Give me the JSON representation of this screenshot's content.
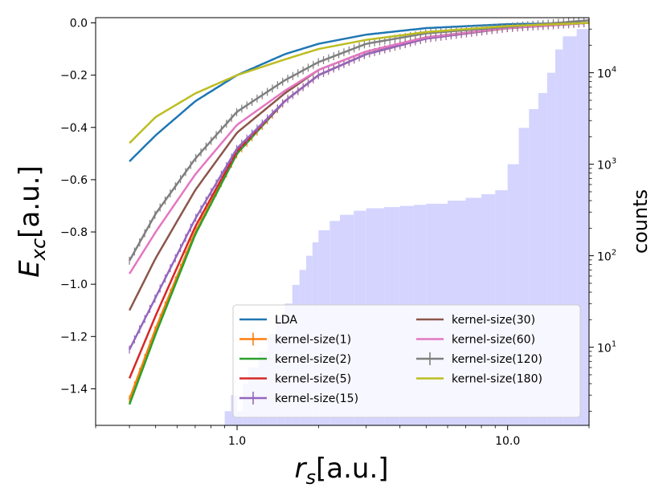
{
  "chart_data": {
    "type": "line",
    "title": "",
    "xlabel_base": "r",
    "xlabel_sub": "s",
    "xlabel_unit": "[a.u.]",
    "ylabel_base": "E",
    "ylabel_sub": "xc",
    "ylabel_unit": "[a.u.]",
    "y2label": "counts",
    "xscale": "log",
    "xlim": [
      0.3,
      20
    ],
    "ylim": [
      -1.54,
      0.02
    ],
    "y2scale": "log",
    "y2lim": [
      1.4,
      40000
    ],
    "xticks": [
      {
        "value": 1.0,
        "label": "1.0"
      },
      {
        "value": 10.0,
        "label": "10.0"
      }
    ],
    "yticks": [
      {
        "value": 0.0,
        "label": "0.0"
      },
      {
        "value": -0.2,
        "label": "−0.2"
      },
      {
        "value": -0.4,
        "label": "−0.4"
      },
      {
        "value": -0.6,
        "label": "−0.6"
      },
      {
        "value": -0.8,
        "label": "−0.8"
      },
      {
        "value": -1.0,
        "label": "−1.0"
      },
      {
        "value": -1.2,
        "label": "−1.2"
      },
      {
        "value": -1.4,
        "label": "−1.4"
      }
    ],
    "y2ticks": [
      {
        "value": 10,
        "base": "10",
        "exp": "1"
      },
      {
        "value": 100,
        "base": "10",
        "exp": "2"
      },
      {
        "value": 1000,
        "base": "10",
        "exp": "3"
      },
      {
        "value": 10000,
        "base": "10",
        "exp": "4"
      }
    ],
    "series": [
      {
        "name": "LDA",
        "color": "#1f77b4",
        "errorbars": false,
        "x": [
          0.4,
          0.5,
          0.7,
          1.0,
          1.5,
          2.0,
          3.0,
          5.0,
          10.0,
          20.0
        ],
        "y": [
          -0.53,
          -0.43,
          -0.3,
          -0.2,
          -0.12,
          -0.08,
          -0.045,
          -0.02,
          -0.005,
          0.0
        ]
      },
      {
        "name": "kernel-size(1)",
        "color": "#ff7f0e",
        "errorbars": true,
        "x": [
          0.4,
          0.5,
          0.7,
          1.0,
          1.5,
          2.0,
          3.0,
          5.0,
          10.0,
          20.0
        ],
        "y": [
          -1.44,
          -1.17,
          -0.8,
          -0.5,
          -0.3,
          -0.2,
          -0.12,
          -0.06,
          -0.02,
          0.0
        ]
      },
      {
        "name": "kernel-size(2)",
        "color": "#2ca02c",
        "errorbars": false,
        "x": [
          0.4,
          0.5,
          0.7,
          1.0,
          1.5,
          2.0,
          3.0,
          5.0,
          10.0,
          20.0
        ],
        "y": [
          -1.46,
          -1.19,
          -0.81,
          -0.5,
          -0.3,
          -0.2,
          -0.12,
          -0.06,
          -0.02,
          0.0
        ]
      },
      {
        "name": "kernel-size(5)",
        "color": "#d62728",
        "errorbars": false,
        "x": [
          0.4,
          0.5,
          0.7,
          1.0,
          1.5,
          2.0,
          3.0,
          5.0,
          10.0,
          20.0
        ],
        "y": [
          -1.36,
          -1.12,
          -0.78,
          -0.49,
          -0.3,
          -0.2,
          -0.12,
          -0.06,
          -0.02,
          0.0
        ]
      },
      {
        "name": "kernel-size(15)",
        "color": "#9467bd",
        "errorbars": true,
        "x": [
          0.4,
          0.5,
          0.7,
          1.0,
          1.5,
          2.0,
          3.0,
          5.0,
          10.0,
          20.0
        ],
        "y": [
          -1.25,
          -1.05,
          -0.75,
          -0.48,
          -0.3,
          -0.2,
          -0.12,
          -0.06,
          -0.02,
          0.0
        ]
      },
      {
        "name": "kernel-size(30)",
        "color": "#8c564b",
        "errorbars": false,
        "x": [
          0.4,
          0.5,
          0.7,
          1.0,
          1.5,
          2.0,
          3.0,
          5.0,
          10.0,
          20.0
        ],
        "y": [
          -1.1,
          -0.9,
          -0.64,
          -0.42,
          -0.27,
          -0.18,
          -0.11,
          -0.055,
          -0.02,
          0.0
        ]
      },
      {
        "name": "kernel-size(60)",
        "color": "#e377c2",
        "errorbars": false,
        "x": [
          0.4,
          0.5,
          0.7,
          1.0,
          1.5,
          2.0,
          3.0,
          5.0,
          10.0,
          20.0
        ],
        "y": [
          -0.96,
          -0.8,
          -0.58,
          -0.39,
          -0.26,
          -0.18,
          -0.11,
          -0.055,
          -0.02,
          0.0
        ]
      },
      {
        "name": "kernel-size(120)",
        "color": "#7f7f7f",
        "errorbars": true,
        "x": [
          0.4,
          0.5,
          0.7,
          1.0,
          1.5,
          2.0,
          3.0,
          5.0,
          10.0,
          20.0
        ],
        "y": [
          -0.91,
          -0.73,
          -0.52,
          -0.34,
          -0.22,
          -0.15,
          -0.08,
          -0.04,
          -0.015,
          0.01
        ]
      },
      {
        "name": "kernel-size(180)",
        "color": "#bcbd22",
        "errorbars": false,
        "x": [
          0.4,
          0.5,
          0.7,
          1.0,
          1.5,
          2.0,
          3.0,
          5.0,
          10.0,
          20.0
        ],
        "y": [
          -0.46,
          -0.36,
          -0.27,
          -0.2,
          -0.14,
          -0.1,
          -0.065,
          -0.035,
          -0.012,
          0.0
        ]
      }
    ],
    "histogram": {
      "name": "counts",
      "color": "#ccccff",
      "x": [
        0.9,
        0.95,
        1.0,
        1.05,
        1.1,
        1.2,
        1.3,
        1.4,
        1.5,
        1.6,
        1.7,
        1.8,
        1.9,
        2.0,
        2.2,
        2.4,
        2.7,
        3.0,
        3.5,
        4.0,
        4.5,
        5.0,
        6.0,
        7.0,
        8.0,
        9.0,
        10.0,
        11.0,
        12.0,
        13.0,
        14.0,
        15.0,
        16.0,
        18.0,
        20.0
      ],
      "counts": [
        2,
        3,
        2,
        4,
        6,
        9,
        14,
        22,
        30,
        48,
        70,
        100,
        140,
        190,
        240,
        280,
        310,
        330,
        340,
        350,
        360,
        370,
        400,
        430,
        470,
        520,
        1000,
        2500,
        4000,
        6000,
        10000,
        18000,
        25000,
        30000,
        32000
      ]
    },
    "legend": {
      "location": "lower-right",
      "columns": 2
    }
  }
}
